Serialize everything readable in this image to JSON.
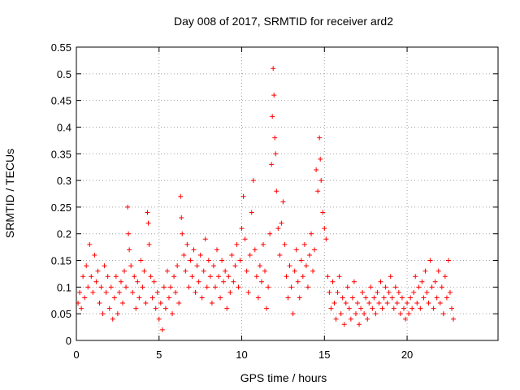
{
  "chart_data": {
    "type": "scatter",
    "title": "Day 008 of 2017, SRMTID for receiver ard2",
    "xlabel": "GPS time / hours",
    "ylabel": "SRMTID / TECUs",
    "xlim": [
      0,
      25.5
    ],
    "ylim": [
      0,
      0.55
    ],
    "x_ticks": [
      0,
      5,
      10,
      15,
      20
    ],
    "x_tick_labels": [
      "0",
      "5",
      "10",
      "15",
      "20"
    ],
    "y_ticks": [
      0,
      0.05,
      0.1,
      0.15,
      0.2,
      0.25,
      0.3,
      0.35,
      0.4,
      0.45,
      0.5,
      0.55
    ],
    "y_tick_labels": [
      "0",
      "0.05",
      "0.1",
      "0.15",
      "0.2",
      "0.25",
      "0.3",
      "0.35",
      "0.4",
      "0.45",
      "0.5",
      "0.55"
    ],
    "grid": true,
    "marker": "+",
    "color": "#ff0000",
    "series": [
      {
        "name": "SRMTID",
        "points": [
          [
            0.1,
            0.07
          ],
          [
            0.2,
            0.09
          ],
          [
            0.3,
            0.06
          ],
          [
            0.4,
            0.12
          ],
          [
            0.5,
            0.08
          ],
          [
            0.6,
            0.14
          ],
          [
            0.7,
            0.1
          ],
          [
            0.8,
            0.18
          ],
          [
            0.9,
            0.12
          ],
          [
            1.0,
            0.09
          ],
          [
            1.1,
            0.16
          ],
          [
            1.2,
            0.11
          ],
          [
            1.3,
            0.13
          ],
          [
            1.4,
            0.07
          ],
          [
            1.5,
            0.1
          ],
          [
            1.6,
            0.05
          ],
          [
            1.7,
            0.14
          ],
          [
            1.8,
            0.09
          ],
          [
            1.9,
            0.12
          ],
          [
            2.0,
            0.06
          ],
          [
            2.1,
            0.1
          ],
          [
            2.2,
            0.04
          ],
          [
            2.3,
            0.08
          ],
          [
            2.4,
            0.12
          ],
          [
            2.5,
            0.05
          ],
          [
            2.6,
            0.09
          ],
          [
            2.7,
            0.11
          ],
          [
            2.8,
            0.07
          ],
          [
            2.9,
            0.13
          ],
          [
            3.0,
            0.1
          ],
          [
            3.1,
            0.25
          ],
          [
            3.15,
            0.2
          ],
          [
            3.2,
            0.17
          ],
          [
            3.3,
            0.14
          ],
          [
            3.4,
            0.09
          ],
          [
            3.5,
            0.12
          ],
          [
            3.6,
            0.06
          ],
          [
            3.7,
            0.11
          ],
          [
            3.8,
            0.08
          ],
          [
            3.9,
            0.15
          ],
          [
            4.0,
            0.1
          ],
          [
            4.1,
            0.13
          ],
          [
            4.2,
            0.07
          ],
          [
            4.3,
            0.24
          ],
          [
            4.35,
            0.22
          ],
          [
            4.4,
            0.18
          ],
          [
            4.5,
            0.12
          ],
          [
            4.6,
            0.08
          ],
          [
            4.7,
            0.11
          ],
          [
            4.8,
            0.06
          ],
          [
            4.9,
            0.09
          ],
          [
            5.0,
            0.04
          ],
          [
            5.1,
            0.07
          ],
          [
            5.2,
            0.02
          ],
          [
            5.3,
            0.1
          ],
          [
            5.4,
            0.06
          ],
          [
            5.5,
            0.13
          ],
          [
            5.6,
            0.08
          ],
          [
            5.7,
            0.1
          ],
          [
            5.8,
            0.05
          ],
          [
            5.9,
            0.12
          ],
          [
            6.0,
            0.09
          ],
          [
            6.1,
            0.14
          ],
          [
            6.2,
            0.07
          ],
          [
            6.3,
            0.27
          ],
          [
            6.35,
            0.23
          ],
          [
            6.4,
            0.2
          ],
          [
            6.5,
            0.16
          ],
          [
            6.6,
            0.13
          ],
          [
            6.7,
            0.18
          ],
          [
            6.8,
            0.1
          ],
          [
            6.9,
            0.15
          ],
          [
            7.0,
            0.12
          ],
          [
            7.1,
            0.17
          ],
          [
            7.2,
            0.09
          ],
          [
            7.3,
            0.14
          ],
          [
            7.4,
            0.11
          ],
          [
            7.5,
            0.16
          ],
          [
            7.6,
            0.08
          ],
          [
            7.7,
            0.13
          ],
          [
            7.8,
            0.19
          ],
          [
            7.9,
            0.1
          ],
          [
            8.0,
            0.15
          ],
          [
            8.1,
            0.12
          ],
          [
            8.2,
            0.07
          ],
          [
            8.3,
            0.14
          ],
          [
            8.4,
            0.1
          ],
          [
            8.5,
            0.17
          ],
          [
            8.6,
            0.12
          ],
          [
            8.7,
            0.08
          ],
          [
            8.8,
            0.15
          ],
          [
            8.9,
            0.11
          ],
          [
            9.0,
            0.13
          ],
          [
            9.1,
            0.06
          ],
          [
            9.2,
            0.12
          ],
          [
            9.3,
            0.09
          ],
          [
            9.4,
            0.16
          ],
          [
            9.5,
            0.11
          ],
          [
            9.6,
            0.14
          ],
          [
            9.7,
            0.18
          ],
          [
            9.8,
            0.1
          ],
          [
            9.9,
            0.15
          ],
          [
            10.0,
            0.21
          ],
          [
            10.1,
            0.27
          ],
          [
            10.2,
            0.19
          ],
          [
            10.3,
            0.13
          ],
          [
            10.4,
            0.09
          ],
          [
            10.5,
            0.16
          ],
          [
            10.6,
            0.24
          ],
          [
            10.7,
            0.3
          ],
          [
            10.8,
            0.17
          ],
          [
            10.9,
            0.12
          ],
          [
            11.0,
            0.08
          ],
          [
            11.1,
            0.14
          ],
          [
            11.2,
            0.11
          ],
          [
            11.3,
            0.18
          ],
          [
            11.4,
            0.13
          ],
          [
            11.5,
            0.06
          ],
          [
            11.6,
            0.1
          ],
          [
            11.7,
            0.2
          ],
          [
            11.8,
            0.33
          ],
          [
            11.85,
            0.42
          ],
          [
            11.9,
            0.51
          ],
          [
            11.95,
            0.46
          ],
          [
            12.0,
            0.38
          ],
          [
            12.05,
            0.35
          ],
          [
            12.1,
            0.28
          ],
          [
            12.2,
            0.21
          ],
          [
            12.3,
            0.16
          ],
          [
            12.4,
            0.22
          ],
          [
            12.5,
            0.26
          ],
          [
            12.6,
            0.18
          ],
          [
            12.7,
            0.12
          ],
          [
            12.8,
            0.08
          ],
          [
            12.9,
            0.14
          ],
          [
            13.0,
            0.1
          ],
          [
            13.1,
            0.05
          ],
          [
            13.2,
            0.13
          ],
          [
            13.3,
            0.17
          ],
          [
            13.4,
            0.11
          ],
          [
            13.5,
            0.08
          ],
          [
            13.6,
            0.15
          ],
          [
            13.7,
            0.12
          ],
          [
            13.8,
            0.18
          ],
          [
            13.9,
            0.14
          ],
          [
            14.0,
            0.1
          ],
          [
            14.1,
            0.16
          ],
          [
            14.2,
            0.2
          ],
          [
            14.3,
            0.13
          ],
          [
            14.4,
            0.17
          ],
          [
            14.5,
            0.32
          ],
          [
            14.6,
            0.28
          ],
          [
            14.7,
            0.38
          ],
          [
            14.75,
            0.34
          ],
          [
            14.8,
            0.3
          ],
          [
            14.9,
            0.24
          ],
          [
            15.0,
            0.21
          ],
          [
            15.1,
            0.19
          ],
          [
            15.2,
            0.12
          ],
          [
            15.3,
            0.09
          ],
          [
            15.4,
            0.06
          ],
          [
            15.5,
            0.11
          ],
          [
            15.6,
            0.07
          ],
          [
            15.7,
            0.04
          ],
          [
            15.8,
            0.09
          ],
          [
            15.9,
            0.12
          ],
          [
            16.0,
            0.05
          ],
          [
            16.1,
            0.08
          ],
          [
            16.2,
            0.03
          ],
          [
            16.3,
            0.07
          ],
          [
            16.4,
            0.1
          ],
          [
            16.5,
            0.06
          ],
          [
            16.6,
            0.04
          ],
          [
            16.7,
            0.08
          ],
          [
            16.8,
            0.11
          ],
          [
            16.9,
            0.05
          ],
          [
            17.0,
            0.07
          ],
          [
            17.1,
            0.03
          ],
          [
            17.2,
            0.06
          ],
          [
            17.3,
            0.09
          ],
          [
            17.4,
            0.05
          ],
          [
            17.5,
            0.08
          ],
          [
            17.6,
            0.04
          ],
          [
            17.7,
            0.07
          ],
          [
            17.8,
            0.1
          ],
          [
            17.9,
            0.06
          ],
          [
            18.0,
            0.08
          ],
          [
            18.1,
            0.05
          ],
          [
            18.2,
            0.09
          ],
          [
            18.3,
            0.07
          ],
          [
            18.4,
            0.11
          ],
          [
            18.5,
            0.06
          ],
          [
            18.6,
            0.08
          ],
          [
            18.7,
            0.1
          ],
          [
            18.8,
            0.07
          ],
          [
            18.9,
            0.09
          ],
          [
            19.0,
            0.12
          ],
          [
            19.1,
            0.08
          ],
          [
            19.2,
            0.06
          ],
          [
            19.3,
            0.1
          ],
          [
            19.4,
            0.07
          ],
          [
            19.5,
            0.09
          ],
          [
            19.6,
            0.05
          ],
          [
            19.7,
            0.08
          ],
          [
            19.8,
            0.06
          ],
          [
            19.9,
            0.04
          ],
          [
            20.0,
            0.07
          ],
          [
            20.1,
            0.05
          ],
          [
            20.2,
            0.08
          ],
          [
            20.3,
            0.06
          ],
          [
            20.4,
            0.09
          ],
          [
            20.5,
            0.12
          ],
          [
            20.6,
            0.07
          ],
          [
            20.7,
            0.1
          ],
          [
            20.8,
            0.06
          ],
          [
            20.9,
            0.11
          ],
          [
            21.0,
            0.08
          ],
          [
            21.1,
            0.13
          ],
          [
            21.2,
            0.09
          ],
          [
            21.3,
            0.07
          ],
          [
            21.4,
            0.15
          ],
          [
            21.5,
            0.1
          ],
          [
            21.6,
            0.06
          ],
          [
            21.7,
            0.11
          ],
          [
            21.8,
            0.08
          ],
          [
            21.9,
            0.13
          ],
          [
            22.0,
            0.07
          ],
          [
            22.1,
            0.1
          ],
          [
            22.2,
            0.05
          ],
          [
            22.3,
            0.12
          ],
          [
            22.4,
            0.08
          ],
          [
            22.5,
            0.15
          ],
          [
            22.6,
            0.09
          ],
          [
            22.7,
            0.06
          ],
          [
            22.8,
            0.04
          ]
        ]
      }
    ]
  }
}
